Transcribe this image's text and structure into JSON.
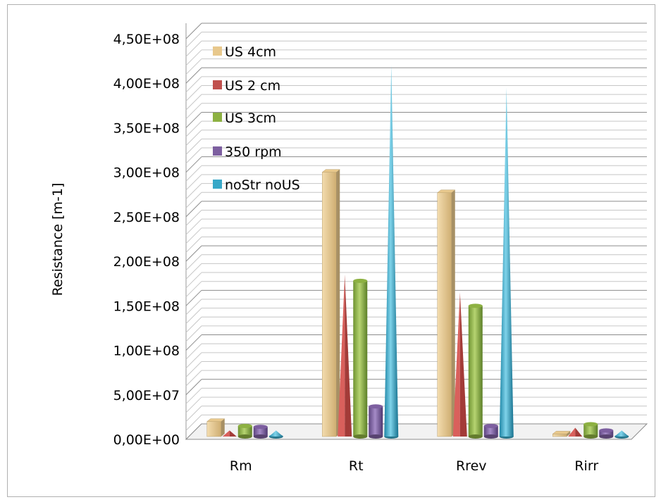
{
  "chart_data": {
    "type": "bar",
    "title": "",
    "xlabel": "",
    "ylabel": "Resistance [m-1]",
    "categories": [
      "Rm",
      "Rt",
      "Rrev",
      "Rirr"
    ],
    "yticks": [
      "0,00E+00",
      "5,00E+07",
      "1,00E+08",
      "1,50E+08",
      "2,00E+08",
      "2,50E+08",
      "3,00E+08",
      "3,50E+08",
      "4,00E+08",
      "4,50E+08"
    ],
    "ylim": [
      0,
      450000000
    ],
    "grid": true,
    "legend_position": "top-left",
    "series": [
      {
        "name": "US 4cm",
        "shape": "box",
        "color": "#e8c88c",
        "values": [
          20000000,
          300000000,
          277000000,
          6000000
        ]
      },
      {
        "name": "US 2 cm",
        "shape": "pyramid",
        "color": "#c0504d",
        "values": [
          10000000,
          185000000,
          165000000,
          13000000
        ]
      },
      {
        "name": "US 3cm",
        "shape": "cylinder",
        "color": "#8db142",
        "values": [
          15000000,
          178000000,
          150000000,
          17000000
        ]
      },
      {
        "name": "350 rpm",
        "shape": "cylinder",
        "color": "#7d5fa0",
        "values": [
          14000000,
          37000000,
          15000000,
          10000000
        ]
      },
      {
        "name": "noStr noUS",
        "shape": "cone",
        "color": "#38a8c8",
        "values": [
          10000000,
          420000000,
          395000000,
          10000000
        ]
      }
    ]
  }
}
